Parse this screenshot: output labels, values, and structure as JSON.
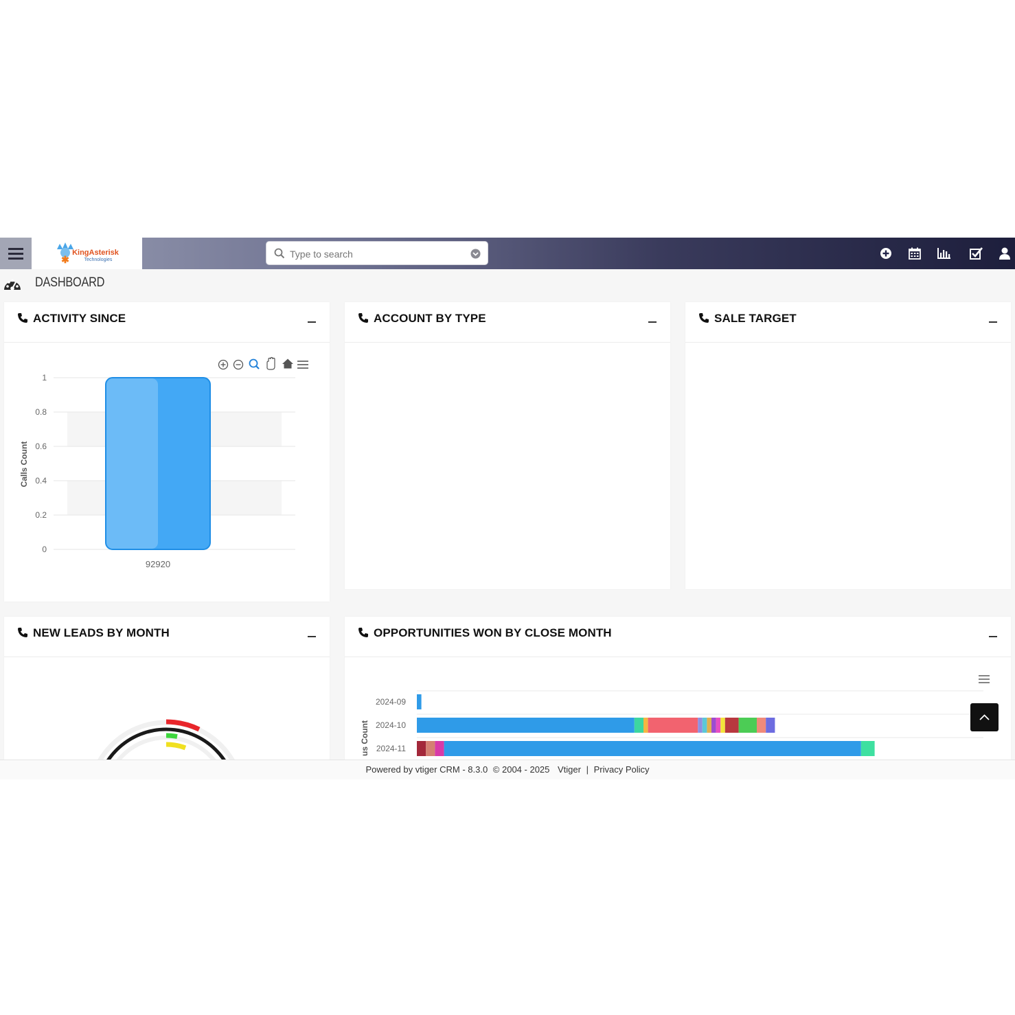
{
  "topbar": {
    "logo_text": "KingAsterisk",
    "logo_subtext": "Technologies",
    "search_placeholder": "Type to search"
  },
  "dashboard": {
    "title": "DASHBOARD"
  },
  "widgets": {
    "activity": {
      "title": "ACTIVITY SINCE"
    },
    "account": {
      "title": "ACCOUNT BY TYPE"
    },
    "sale": {
      "title": "SALE TARGET"
    },
    "leads": {
      "title": "NEW LEADS BY MONTH"
    },
    "opps": {
      "title": "OPPORTUNITIES WON BY CLOSE MONTH"
    }
  },
  "chart_data": [
    {
      "type": "bar",
      "ylabel": "Calls Count",
      "categories": [
        "92920"
      ],
      "values": [
        1
      ],
      "ylim": [
        0,
        1
      ],
      "yticks": [
        "0",
        "0.2",
        "0.4",
        "0.6",
        "0.8",
        "1"
      ],
      "color": "#43a8f5"
    },
    {
      "type": "bar",
      "orientation": "horizontal",
      "stacked": true,
      "ylabel": "us Count",
      "categories": [
        "2024-09",
        "2024-10",
        "2024-11"
      ],
      "segments": [
        [
          {
            "v": 1,
            "c": "#2f9be8"
          }
        ],
        [
          {
            "v": 48,
            "c": "#2f9be8"
          },
          {
            "v": 2,
            "c": "#3dd6a0"
          },
          {
            "v": 1,
            "c": "#f5b642"
          },
          {
            "v": 11,
            "c": "#f2636f"
          },
          {
            "v": 1,
            "c": "#8f8fe0"
          },
          {
            "v": 1,
            "c": "#5bc8d8"
          },
          {
            "v": 1,
            "c": "#e0b050"
          },
          {
            "v": 1,
            "c": "#9c4dd0"
          },
          {
            "v": 1,
            "c": "#e84ec0"
          },
          {
            "v": 1,
            "c": "#f3e33a"
          },
          {
            "v": 3,
            "c": "#b8383f"
          },
          {
            "v": 4,
            "c": "#4ccc55"
          },
          {
            "v": 2,
            "c": "#f08a7a"
          },
          {
            "v": 2,
            "c": "#6d6ce0"
          }
        ],
        [
          {
            "v": 2,
            "c": "#a3283a"
          },
          {
            "v": 2,
            "c": "#d48072"
          },
          {
            "v": 2,
            "c": "#d83aa8"
          },
          {
            "v": 92,
            "c": "#2f9be8"
          },
          {
            "v": 3,
            "c": "#3ee0a0"
          }
        ]
      ]
    },
    {
      "type": "gauge",
      "ranges_colors": [
        "#e8262b",
        "#3dd63d",
        "#f0e020"
      ]
    }
  ],
  "footer": {
    "powered": "Powered by vtiger CRM - 8.3.0",
    "copyright": "© 2004 - 2025",
    "vtiger": "Vtiger",
    "sep": "|",
    "privacy": "Privacy Policy"
  }
}
